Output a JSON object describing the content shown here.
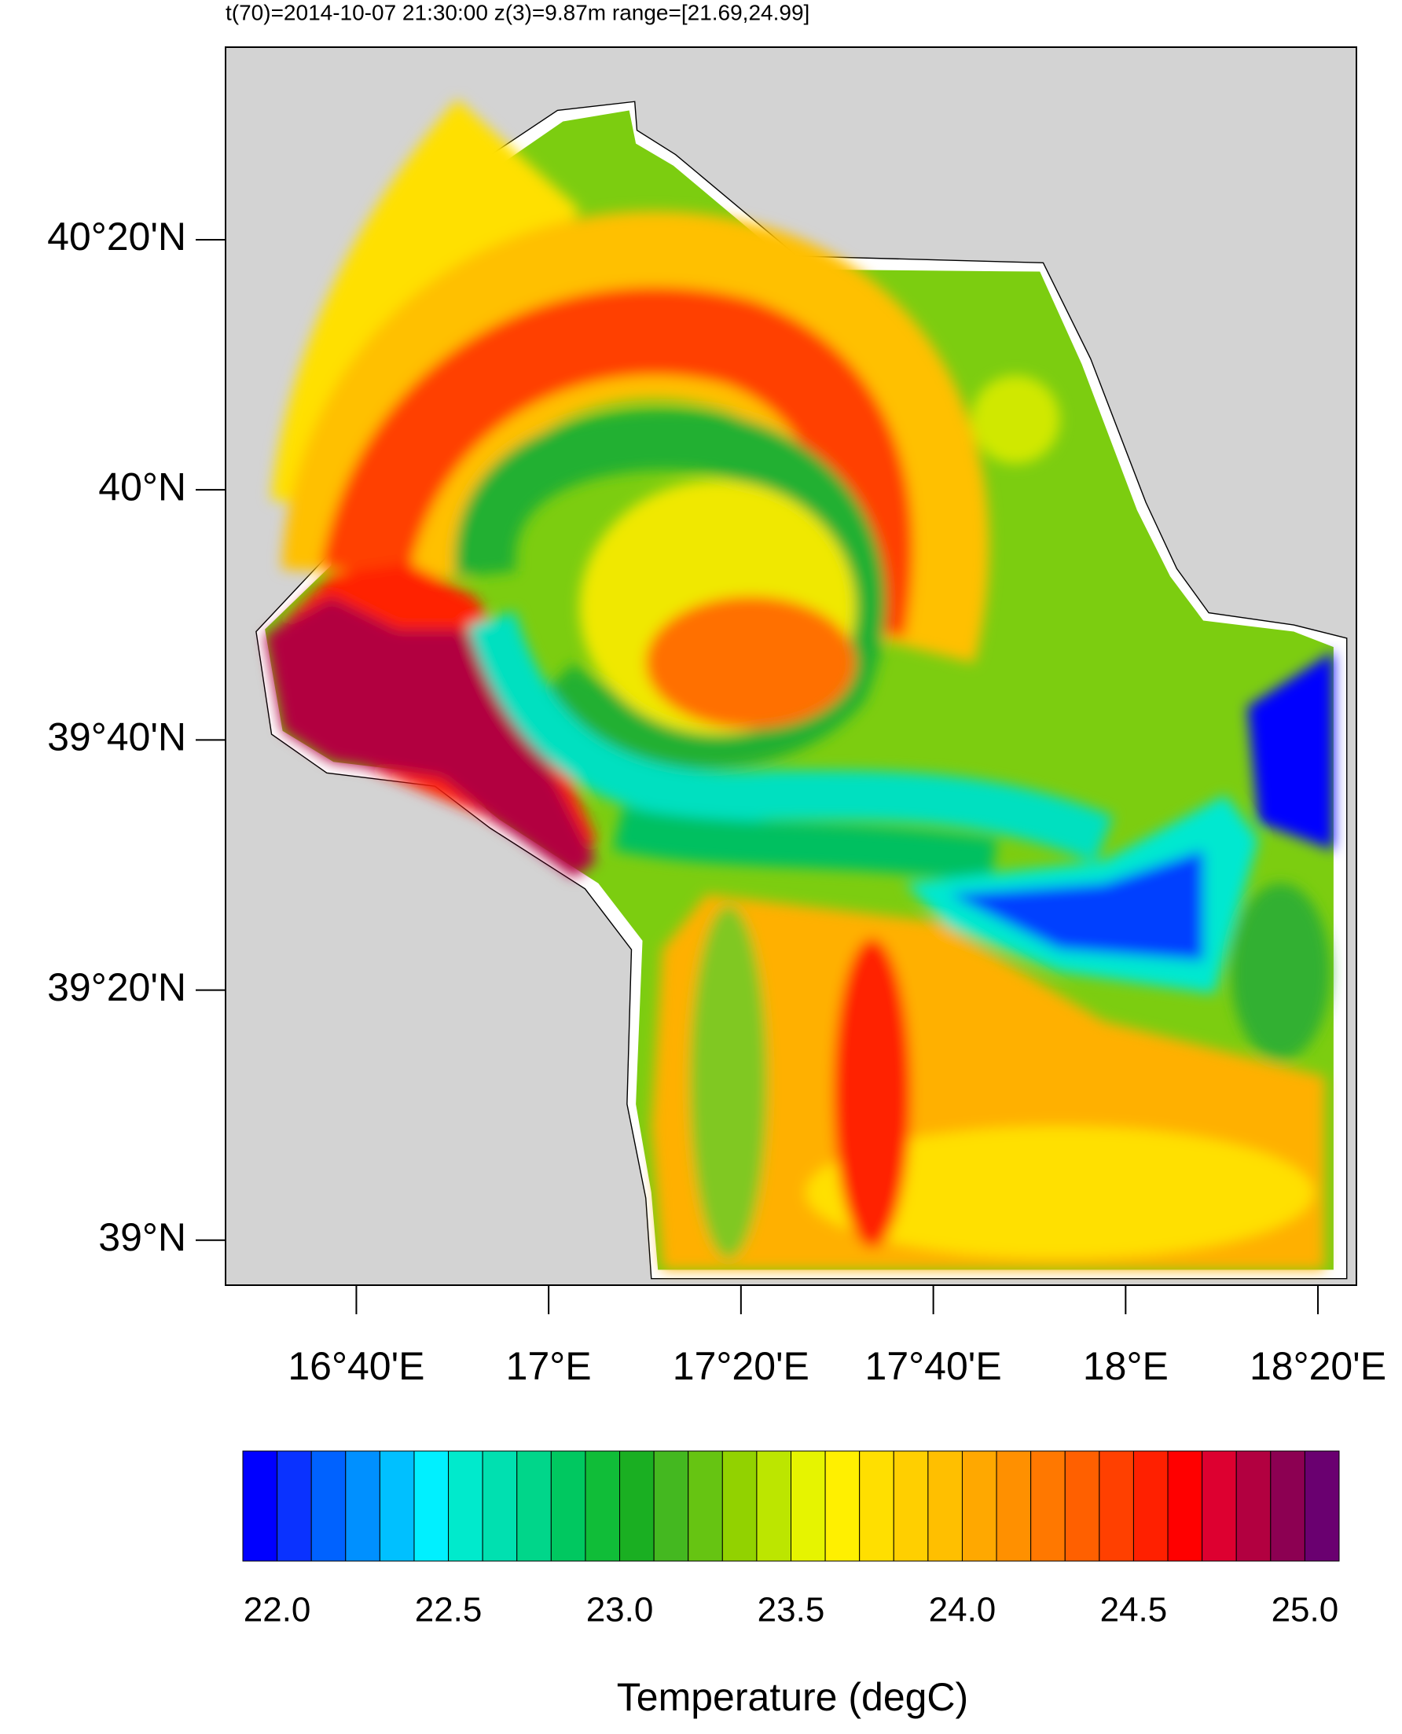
{
  "chart_data": [
    {
      "type": "map",
      "title": "t(70)=2014-10-07 21:30:00  z(3)=9.87m  range=[21.69,24.99]",
      "xlim": [
        16.44,
        18.4
      ],
      "ylim": [
        38.94,
        40.59
      ],
      "xticks": [
        {
          "value": 16.6667,
          "label": "16°40'E"
        },
        {
          "value": 17,
          "label": "17°E"
        },
        {
          "value": 17.3333,
          "label": "17°20'E"
        },
        {
          "value": 17.6667,
          "label": "17°40'E"
        },
        {
          "value": 18,
          "label": "18°E"
        },
        {
          "value": 18.3333,
          "label": "18°20'E"
        }
      ],
      "yticks": [
        {
          "value": 39,
          "label": "39°N"
        },
        {
          "value": 39.3333,
          "label": "39°20'N"
        },
        {
          "value": 39.6667,
          "label": "39°40'N"
        },
        {
          "value": 40,
          "label": "40°N"
        },
        {
          "value": 40.3333,
          "label": "40°20'N"
        }
      ]
    },
    {
      "type": "colorbar",
      "x_label": "Temperature (degC)",
      "xlim": [
        21.9,
        25.1
      ],
      "bins": [
        21.9,
        22.0,
        22.1,
        22.2,
        22.3,
        22.4,
        22.5,
        22.6,
        22.7,
        22.8,
        22.9,
        23.0,
        23.1,
        23.2,
        23.3,
        23.4,
        23.5,
        23.6,
        23.7,
        23.8,
        23.9,
        24.0,
        24.1,
        24.2,
        24.3,
        24.4,
        24.5,
        24.6,
        24.7,
        24.8,
        24.9,
        25.0,
        25.1
      ],
      "colors": [
        "#0000ff",
        "#0a32ff",
        "#0062ff",
        "#0090ff",
        "#00c0ff",
        "#00f0ff",
        "#00eacc",
        "#00e0b0",
        "#00d68a",
        "#00c860",
        "#10bd38",
        "#1aaf22",
        "#44b820",
        "#66c412",
        "#92d200",
        "#bce600",
        "#e6f400",
        "#fff000",
        "#ffdf00",
        "#ffcf00",
        "#ffbf00",
        "#ffa800",
        "#ff9000",
        "#ff7800",
        "#ff6000",
        "#ff4000",
        "#ff2000",
        "#ff0000",
        "#dd0030",
        "#b20040",
        "#8c0052",
        "#6a0070",
        "#55008e"
      ],
      "xticks": [
        {
          "value": 22.0,
          "label": "22.0"
        },
        {
          "value": 22.5,
          "label": "22.5"
        },
        {
          "value": 23.0,
          "label": "23.0"
        },
        {
          "value": 23.5,
          "label": "23.5"
        },
        {
          "value": 24.0,
          "label": "24.0"
        },
        {
          "value": 24.5,
          "label": "24.5"
        },
        {
          "value": 25.0,
          "label": "25.0"
        }
      ]
    }
  ]
}
